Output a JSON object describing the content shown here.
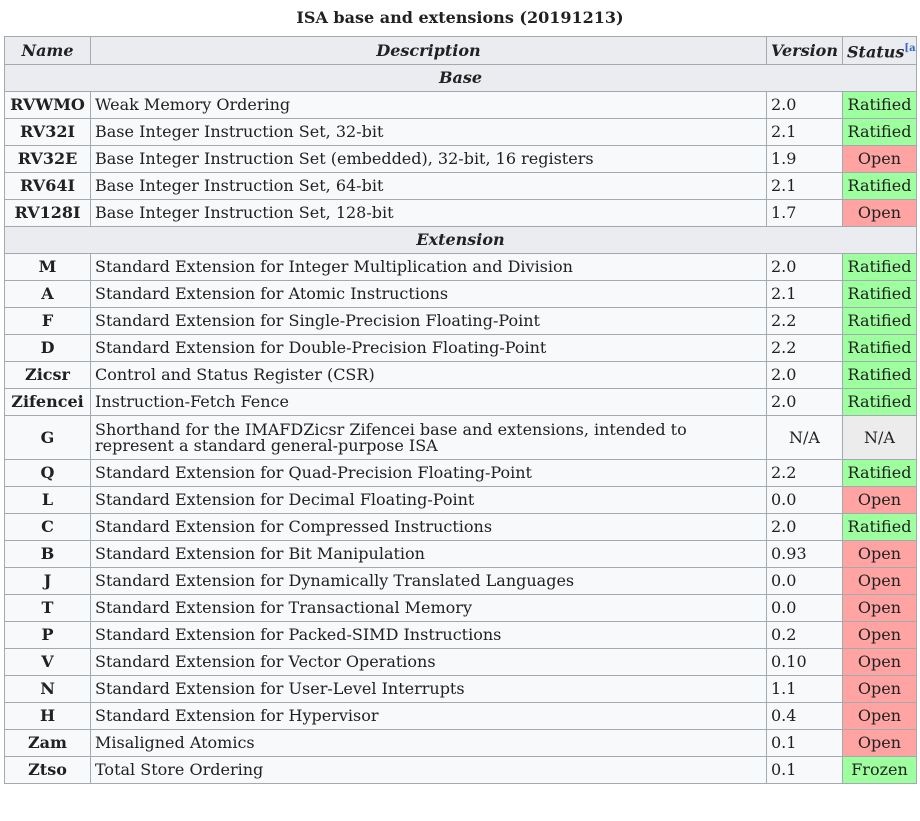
{
  "caption": "ISA base and extensions (20191213)",
  "headers": {
    "name": "Name",
    "description": "Description",
    "version": "Version",
    "status": "Status",
    "status_note": "[a]"
  },
  "colors": {
    "ratified": "#9eff9e",
    "open": "#ffa3a3",
    "frozen": "#9eff9e",
    "neutral": "#ececec",
    "header_bg": "#eaecf0",
    "border": "#a2a9b1"
  },
  "sections": [
    {
      "title": "Base",
      "rows": [
        {
          "name": "RVWMO",
          "description": "Weak Memory Ordering",
          "version": "2.0",
          "status": "Ratified",
          "kind": "ratified"
        },
        {
          "name": "RV32I",
          "description": "Base Integer Instruction Set, 32-bit",
          "version": "2.1",
          "status": "Ratified",
          "kind": "ratified"
        },
        {
          "name": "RV32E",
          "description": "Base Integer Instruction Set (embedded), 32-bit, 16 registers",
          "version": "1.9",
          "status": "Open",
          "kind": "open"
        },
        {
          "name": "RV64I",
          "description": "Base Integer Instruction Set, 64-bit",
          "version": "2.1",
          "status": "Ratified",
          "kind": "ratified"
        },
        {
          "name": "RV128I",
          "description": "Base Integer Instruction Set, 128-bit",
          "version": "1.7",
          "status": "Open",
          "kind": "open"
        }
      ]
    },
    {
      "title": "Extension",
      "rows": [
        {
          "name": "M",
          "description": "Standard Extension for Integer Multiplication and Division",
          "version": "2.0",
          "status": "Ratified",
          "kind": "ratified"
        },
        {
          "name": "A",
          "description": "Standard Extension for Atomic Instructions",
          "version": "2.1",
          "status": "Ratified",
          "kind": "ratified"
        },
        {
          "name": "F",
          "description": "Standard Extension for Single-Precision Floating-Point",
          "version": "2.2",
          "status": "Ratified",
          "kind": "ratified"
        },
        {
          "name": "D",
          "description": "Standard Extension for Double-Precision Floating-Point",
          "version": "2.2",
          "status": "Ratified",
          "kind": "ratified"
        },
        {
          "name": "Zicsr",
          "description": "Control and Status Register (CSR)",
          "version": "2.0",
          "status": "Ratified",
          "kind": "ratified"
        },
        {
          "name": "Zifencei",
          "description": "Instruction-Fetch Fence",
          "version": "2.0",
          "status": "Ratified",
          "kind": "ratified"
        },
        {
          "name": "G",
          "description": "Shorthand for the IMAFDZicsr Zifencei base and extensions, intended to represent a standard general-purpose ISA",
          "version": "N/A",
          "status": "N/A",
          "kind": "neutral"
        },
        {
          "name": "Q",
          "description": "Standard Extension for Quad-Precision Floating-Point",
          "version": "2.2",
          "status": "Ratified",
          "kind": "ratified"
        },
        {
          "name": "L",
          "description": "Standard Extension for Decimal Floating-Point",
          "version": "0.0",
          "status": "Open",
          "kind": "open"
        },
        {
          "name": "C",
          "description": "Standard Extension for Compressed Instructions",
          "version": "2.0",
          "status": "Ratified",
          "kind": "ratified"
        },
        {
          "name": "B",
          "description": "Standard Extension for Bit Manipulation",
          "version": "0.93",
          "status": "Open",
          "kind": "open"
        },
        {
          "name": "J",
          "description": "Standard Extension for Dynamically Translated Languages",
          "version": "0.0",
          "status": "Open",
          "kind": "open"
        },
        {
          "name": "T",
          "description": "Standard Extension for Transactional Memory",
          "version": "0.0",
          "status": "Open",
          "kind": "open"
        },
        {
          "name": "P",
          "description": "Standard Extension for Packed-SIMD Instructions",
          "version": "0.2",
          "status": "Open",
          "kind": "open"
        },
        {
          "name": "V",
          "description": "Standard Extension for Vector Operations",
          "version": "0.10",
          "status": "Open",
          "kind": "open"
        },
        {
          "name": "N",
          "description": "Standard Extension for User-Level Interrupts",
          "version": "1.1",
          "status": "Open",
          "kind": "open"
        },
        {
          "name": "H",
          "description": "Standard Extension for Hypervisor",
          "version": "0.4",
          "status": "Open",
          "kind": "open"
        },
        {
          "name": "Zam",
          "description": "Misaligned Atomics",
          "version": "0.1",
          "status": "Open",
          "kind": "open"
        },
        {
          "name": "Ztso",
          "description": "Total Store Ordering",
          "version": "0.1",
          "status": "Frozen",
          "kind": "frozen"
        }
      ]
    }
  ]
}
